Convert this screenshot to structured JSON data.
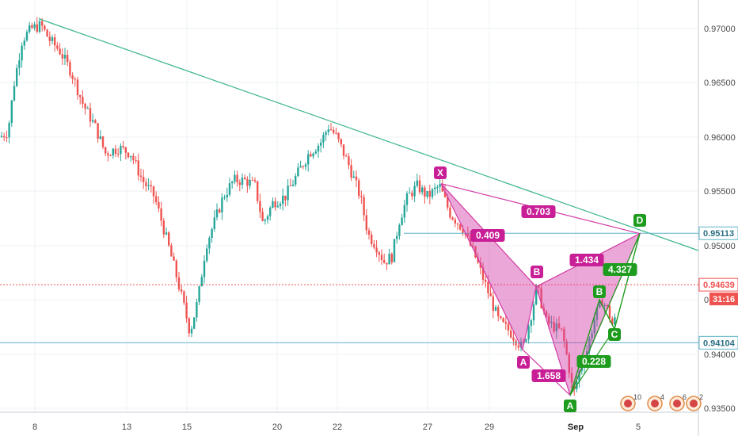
{
  "chart_data": {
    "type": "candlestick",
    "y_axis": {
      "ticks": [
        "0.97000",
        "0.96500",
        "0.96000",
        "0.95500",
        "0.95000",
        "0.94500",
        "0.94000",
        "0.93500"
      ],
      "ylim": [
        0.9338,
        0.9733
      ]
    },
    "x_axis": {
      "ticks": [
        {
          "label": "8",
          "bold": false
        },
        {
          "label": "13",
          "bold": false
        },
        {
          "label": "15",
          "bold": false
        },
        {
          "label": "20",
          "bold": false
        },
        {
          "label": "22",
          "bold": false
        },
        {
          "label": "27",
          "bold": false
        },
        {
          "label": "29",
          "bold": false
        },
        {
          "label": "Sep",
          "bold": true
        },
        {
          "label": "5",
          "bold": false
        }
      ]
    },
    "price_tags": [
      {
        "label": "0.95113",
        "value": 0.95113,
        "color": "#5fb3c9",
        "kind": "hline"
      },
      {
        "label": "0.94639",
        "value": 0.94639,
        "color": "#ef5350",
        "kind": "last-price"
      },
      {
        "label": "0.94104",
        "value": 0.94104,
        "color": "#5fb3c9",
        "kind": "hline"
      }
    ],
    "countdown": "31:16",
    "pattern_1": {
      "color": "#d23ca6",
      "points": [
        {
          "label": "X",
          "value": 0.9557
        },
        {
          "label": "A",
          "value": 0.9404
        },
        {
          "label": "B",
          "value": 0.9462
        },
        {
          "label": "A",
          "value": 0.9362
        },
        {
          "label": "D",
          "value": 0.9511
        }
      ],
      "ratios": [
        "0.703",
        "0.409",
        "1.434",
        "1.658"
      ]
    },
    "pattern_2": {
      "color": "#1e9c1e",
      "points": [
        {
          "label": "B",
          "value": 0.945
        },
        {
          "label": "C",
          "value": 0.9423
        },
        {
          "label": "D",
          "value": 0.9511
        }
      ],
      "ratios": [
        "4.327",
        "0.228"
      ]
    },
    "event_badges": [
      "10",
      "4",
      "6",
      "2"
    ]
  }
}
